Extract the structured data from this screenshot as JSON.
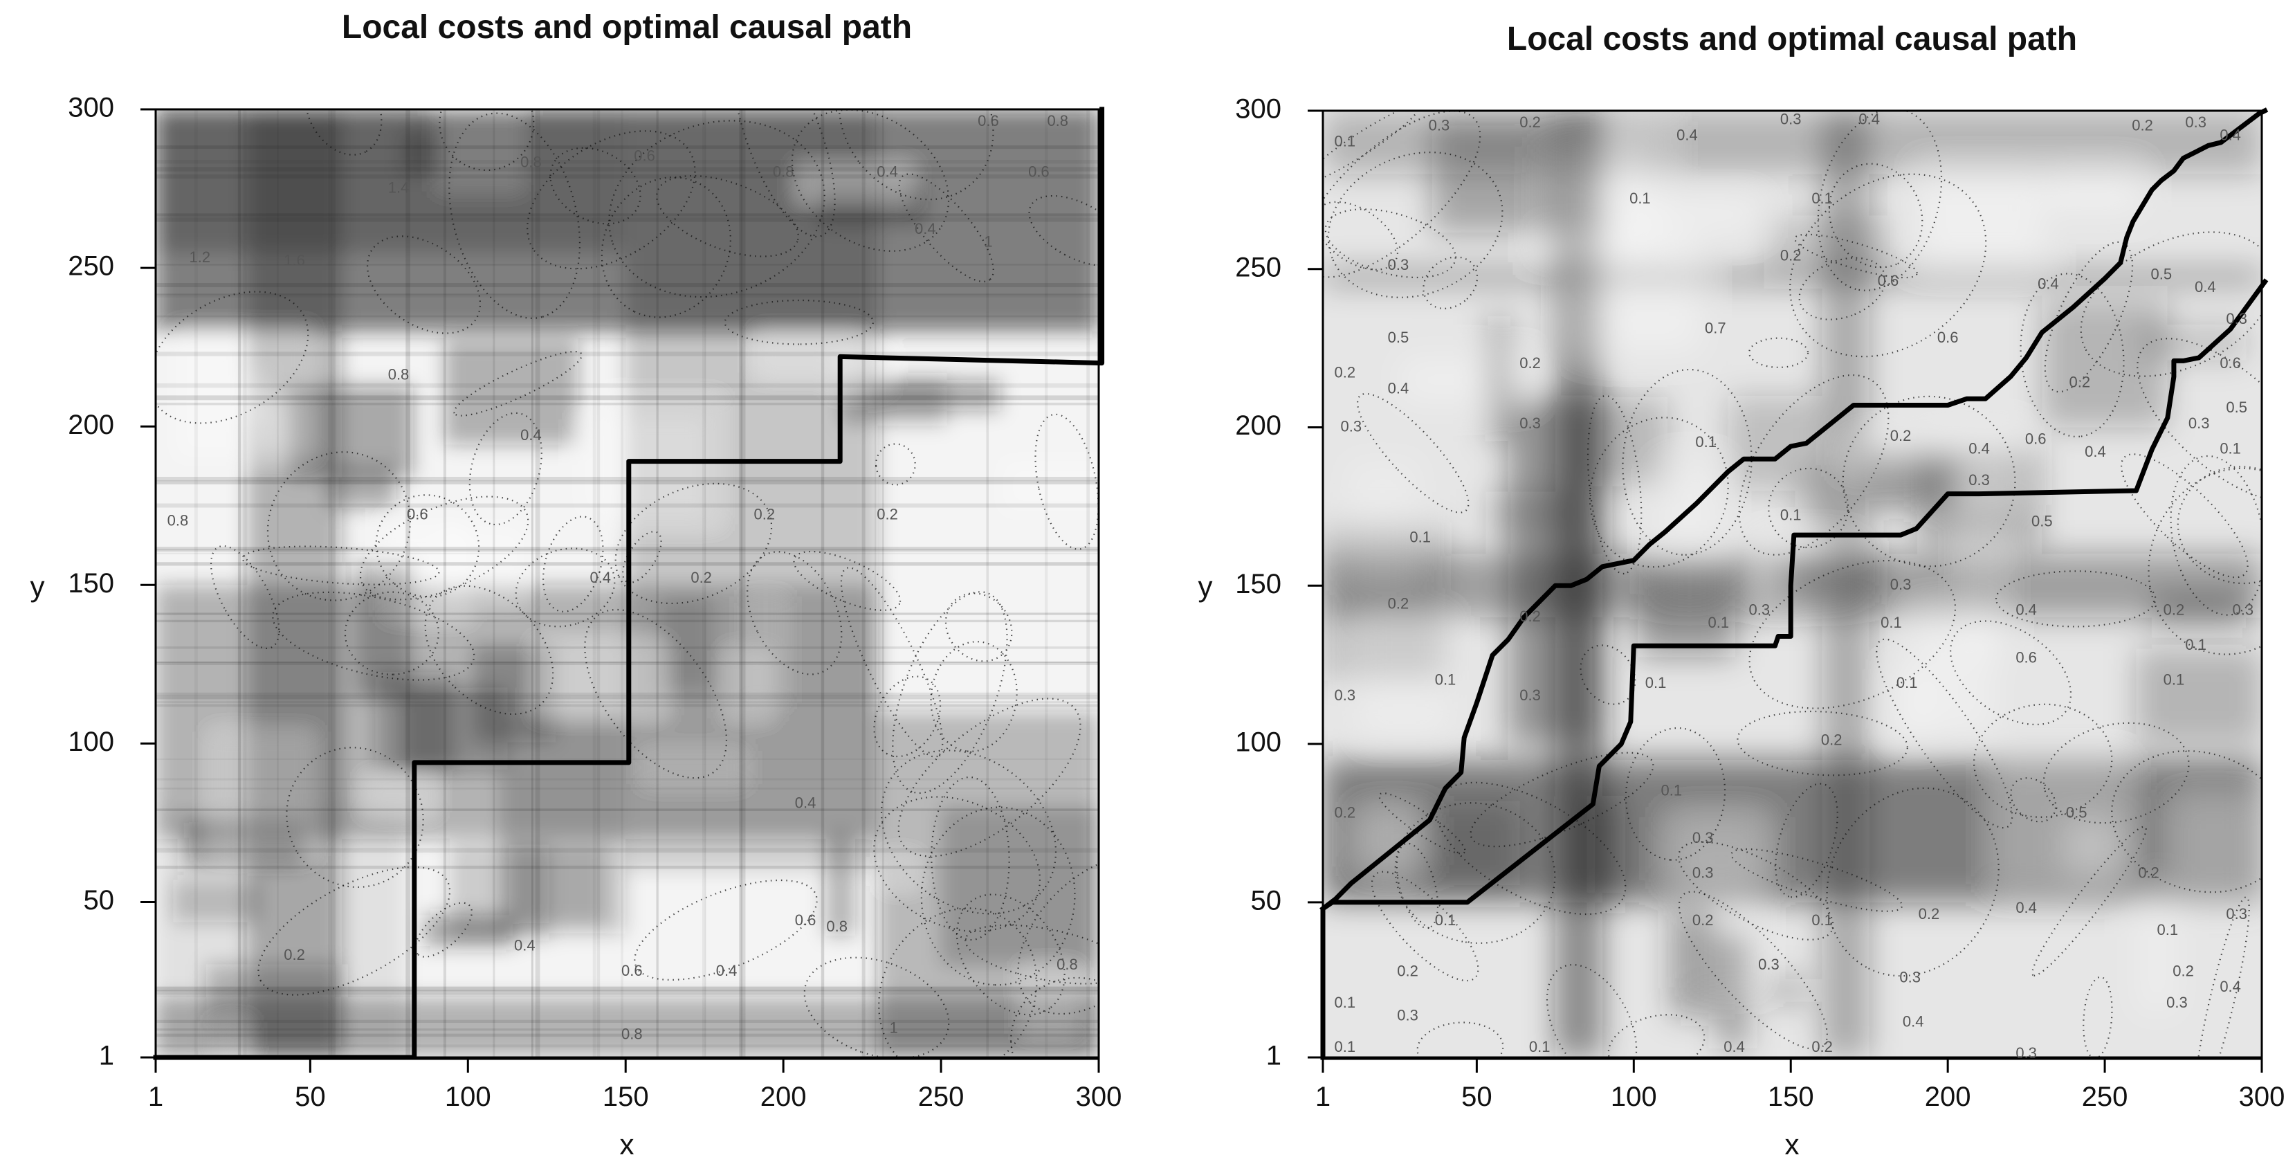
{
  "chart_data": [
    {
      "type": "heatmap",
      "title": "Local costs and optimal causal path",
      "xlabel": "x",
      "ylabel": "y",
      "xlim": [
        1,
        300
      ],
      "ylim": [
        1,
        300
      ],
      "x_ticks": [
        1,
        50,
        100,
        150,
        200,
        250,
        300
      ],
      "y_ticks": [
        1,
        50,
        100,
        150,
        200,
        250,
        300
      ],
      "colormap": "grayscale (dark = high local cost)",
      "contour_lines": "dotted",
      "contour_labels": [
        {
          "text": "0.2",
          "x": 45,
          "y": 33
        },
        {
          "text": "0.4",
          "x": 118,
          "y": 36
        },
        {
          "text": "0.6",
          "x": 152,
          "y": 28
        },
        {
          "text": "0.4",
          "x": 182,
          "y": 28
        },
        {
          "text": "0.6",
          "x": 207,
          "y": 44
        },
        {
          "text": "0.8",
          "x": 217,
          "y": 42
        },
        {
          "text": "0.8",
          "x": 290,
          "y": 30
        },
        {
          "text": "1",
          "x": 235,
          "y": 10
        },
        {
          "text": "0.8",
          "x": 152,
          "y": 8
        },
        {
          "text": "0.4",
          "x": 207,
          "y": 81
        },
        {
          "text": "0.4",
          "x": 142,
          "y": 152
        },
        {
          "text": "0.2",
          "x": 174,
          "y": 152
        },
        {
          "text": "0.2",
          "x": 194,
          "y": 172
        },
        {
          "text": "0.2",
          "x": 233,
          "y": 172
        },
        {
          "text": "0.6",
          "x": 84,
          "y": 172
        },
        {
          "text": "0.8",
          "x": 8,
          "y": 170
        },
        {
          "text": "0.4",
          "x": 120,
          "y": 197
        },
        {
          "text": "0.8",
          "x": 78,
          "y": 216
        },
        {
          "text": "1.2",
          "x": 15,
          "y": 253
        },
        {
          "text": "1.6",
          "x": 45,
          "y": 252
        },
        {
          "text": "1.4",
          "x": 78,
          "y": 275
        },
        {
          "text": "0.8",
          "x": 120,
          "y": 283
        },
        {
          "text": "0.6",
          "x": 156,
          "y": 285
        },
        {
          "text": "0.8",
          "x": 200,
          "y": 280
        },
        {
          "text": "0.4",
          "x": 233,
          "y": 280
        },
        {
          "text": "0.4",
          "x": 245,
          "y": 262
        },
        {
          "text": "0.6",
          "x": 265,
          "y": 296
        },
        {
          "text": "0.8",
          "x": 287,
          "y": 296
        },
        {
          "text": "0.6",
          "x": 281,
          "y": 280
        },
        {
          "text": "1",
          "x": 265,
          "y": 258
        }
      ],
      "series": [
        {
          "name": "optimal causal path",
          "x": [
            1,
            83,
            83,
            151,
            151,
            218,
            218,
            301,
            301
          ],
          "y": [
            1,
            1,
            94,
            94,
            189,
            189,
            222,
            220,
            300
          ]
        }
      ]
    },
    {
      "type": "heatmap",
      "title": "Local costs and optimal causal path",
      "xlabel": "x",
      "ylabel": "y",
      "xlim": [
        1,
        300
      ],
      "ylim": [
        1,
        300
      ],
      "x_ticks": [
        1,
        50,
        100,
        150,
        200,
        250,
        300
      ],
      "y_ticks": [
        1,
        50,
        100,
        150,
        200,
        250,
        300
      ],
      "colormap": "grayscale (dark = high local cost)",
      "contour_lines": "dotted",
      "contour_labels": [
        {
          "text": "0.1",
          "x": 8,
          "y": 4
        },
        {
          "text": "0.1",
          "x": 8,
          "y": 18
        },
        {
          "text": "0.2",
          "x": 28,
          "y": 28
        },
        {
          "text": "0.3",
          "x": 28,
          "y": 14
        },
        {
          "text": "0.1",
          "x": 40,
          "y": 44
        },
        {
          "text": "0.1",
          "x": 70,
          "y": 4
        },
        {
          "text": "0.2",
          "x": 8,
          "y": 78
        },
        {
          "text": "0.3",
          "x": 8,
          "y": 115
        },
        {
          "text": "0.1",
          "x": 40,
          "y": 120
        },
        {
          "text": "0.2",
          "x": 25,
          "y": 144
        },
        {
          "text": "0.1",
          "x": 32,
          "y": 165
        },
        {
          "text": "0.3",
          "x": 10,
          "y": 200
        },
        {
          "text": "0.2",
          "x": 8,
          "y": 217
        },
        {
          "text": "0.4",
          "x": 25,
          "y": 212
        },
        {
          "text": "0.5",
          "x": 25,
          "y": 228
        },
        {
          "text": "0.3",
          "x": 25,
          "y": 251
        },
        {
          "text": "0.1",
          "x": 8,
          "y": 290
        },
        {
          "text": "0.3",
          "x": 38,
          "y": 295
        },
        {
          "text": "0.2",
          "x": 67,
          "y": 296
        },
        {
          "text": "0.1",
          "x": 102,
          "y": 272
        },
        {
          "text": "0.2",
          "x": 67,
          "y": 220
        },
        {
          "text": "0.3",
          "x": 67,
          "y": 201
        },
        {
          "text": "0.2",
          "x": 67,
          "y": 140
        },
        {
          "text": "0.3",
          "x": 67,
          "y": 115
        },
        {
          "text": "0.1",
          "x": 107,
          "y": 119
        },
        {
          "text": "0.1",
          "x": 112,
          "y": 85
        },
        {
          "text": "0.3",
          "x": 122,
          "y": 70
        },
        {
          "text": "0.3",
          "x": 122,
          "y": 59
        },
        {
          "text": "0.2",
          "x": 122,
          "y": 44
        },
        {
          "text": "0.3",
          "x": 143,
          "y": 30
        },
        {
          "text": "0.4",
          "x": 132,
          "y": 4
        },
        {
          "text": "0.2",
          "x": 160,
          "y": 4
        },
        {
          "text": "0.1",
          "x": 160,
          "y": 44
        },
        {
          "text": "0.4",
          "x": 247,
          "y": 192
        },
        {
          "text": "0.6",
          "x": 181,
          "y": 246
        },
        {
          "text": "0.7",
          "x": 126,
          "y": 231
        },
        {
          "text": "0.4",
          "x": 232,
          "y": 245
        },
        {
          "text": "0.5",
          "x": 268,
          "y": 248
        },
        {
          "text": "0.3",
          "x": 150,
          "y": 297
        },
        {
          "text": "0.4",
          "x": 175,
          "y": 297
        },
        {
          "text": "0.4",
          "x": 117,
          "y": 292
        },
        {
          "text": "0.1",
          "x": 160,
          "y": 272
        },
        {
          "text": "0.2",
          "x": 150,
          "y": 254
        },
        {
          "text": "0.6",
          "x": 200,
          "y": 228
        },
        {
          "text": "0.4",
          "x": 210,
          "y": 193
        },
        {
          "text": "0.1",
          "x": 123,
          "y": 195
        },
        {
          "text": "0.2",
          "x": 185,
          "y": 197
        },
        {
          "text": "0.3",
          "x": 210,
          "y": 183
        },
        {
          "text": "0.2",
          "x": 242,
          "y": 214
        },
        {
          "text": "0.6",
          "x": 228,
          "y": 196
        },
        {
          "text": "0.3",
          "x": 280,
          "y": 201
        },
        {
          "text": "0.5",
          "x": 292,
          "y": 206
        },
        {
          "text": "0.6",
          "x": 290,
          "y": 220
        },
        {
          "text": "0.1",
          "x": 290,
          "y": 193
        },
        {
          "text": "0.4",
          "x": 282,
          "y": 244
        },
        {
          "text": "0.3",
          "x": 292,
          "y": 234
        },
        {
          "text": "0.2",
          "x": 262,
          "y": 295
        },
        {
          "text": "0.3",
          "x": 279,
          "y": 296
        },
        {
          "text": "0.4",
          "x": 290,
          "y": 292
        },
        {
          "text": "0.1",
          "x": 150,
          "y": 172
        },
        {
          "text": "0.1",
          "x": 127,
          "y": 138
        },
        {
          "text": "0.3",
          "x": 140,
          "y": 142
        },
        {
          "text": "0.1",
          "x": 182,
          "y": 138
        },
        {
          "text": "0.3",
          "x": 185,
          "y": 150
        },
        {
          "text": "0.1",
          "x": 187,
          "y": 119
        },
        {
          "text": "0.2",
          "x": 163,
          "y": 101
        },
        {
          "text": "0.5",
          "x": 230,
          "y": 170
        },
        {
          "text": "0.4",
          "x": 225,
          "y": 142
        },
        {
          "text": "0.6",
          "x": 225,
          "y": 127
        },
        {
          "text": "0.2",
          "x": 272,
          "y": 142
        },
        {
          "text": "0.3",
          "x": 294,
          "y": 142
        },
        {
          "text": "0.1",
          "x": 279,
          "y": 131
        },
        {
          "text": "0.1",
          "x": 272,
          "y": 120
        },
        {
          "text": "0.5",
          "x": 241,
          "y": 78
        },
        {
          "text": "0.2",
          "x": 264,
          "y": 59
        },
        {
          "text": "0.4",
          "x": 225,
          "y": 48
        },
        {
          "text": "0.2",
          "x": 194,
          "y": 46
        },
        {
          "text": "0.3",
          "x": 188,
          "y": 26
        },
        {
          "text": "0.4",
          "x": 189,
          "y": 12
        },
        {
          "text": "0.3",
          "x": 225,
          "y": 2
        },
        {
          "text": "0.1",
          "x": 270,
          "y": 41
        },
        {
          "text": "0.3",
          "x": 292,
          "y": 46
        },
        {
          "text": "0.2",
          "x": 275,
          "y": 28
        },
        {
          "text": "0.3",
          "x": 273,
          "y": 18
        },
        {
          "text": "0.4",
          "x": 290,
          "y": 23
        }
      ],
      "series": [
        {
          "name": "upper path",
          "x": [
            1,
            5,
            10,
            20,
            30,
            35,
            38,
            40,
            45,
            46,
            50,
            55,
            60,
            65,
            75,
            80,
            85,
            90,
            100,
            105,
            110,
            120,
            130,
            135,
            145,
            150,
            155,
            160,
            170,
            180,
            190,
            200,
            206,
            212,
            220,
            225,
            230,
            240,
            250,
            255,
            257,
            259,
            262,
            265,
            268,
            272,
            275,
            279,
            283,
            287,
            291,
            295,
            299,
            301
          ],
          "y": [
            48,
            51,
            56,
            64,
            72,
            76,
            82,
            86,
            91,
            102,
            113,
            128,
            133,
            140,
            150,
            150,
            152,
            156,
            158,
            163,
            167,
            176,
            186,
            190,
            190,
            194,
            195,
            199,
            207,
            207,
            207,
            207,
            209,
            209,
            216,
            222,
            230,
            238,
            247,
            252,
            260,
            265,
            270,
            275,
            278,
            281,
            285,
            287,
            289,
            290,
            293,
            296,
            299,
            300
          ]
        },
        {
          "name": "lower path",
          "x": [
            1,
            1,
            4,
            47,
            87,
            89,
            96,
            99,
            100,
            110,
            145,
            146,
            150,
            150,
            151,
            160,
            180,
            185,
            190,
            200,
            210,
            260,
            265,
            270,
            272,
            272,
            275,
            280,
            290,
            301
          ],
          "y": [
            1,
            48,
            50,
            50,
            81,
            93,
            100,
            107,
            131,
            131,
            131,
            134,
            134,
            150,
            166,
            166,
            166,
            166,
            168,
            179,
            179,
            180,
            193,
            203,
            216,
            221,
            221,
            222,
            231,
            246
          ]
        }
      ]
    }
  ]
}
